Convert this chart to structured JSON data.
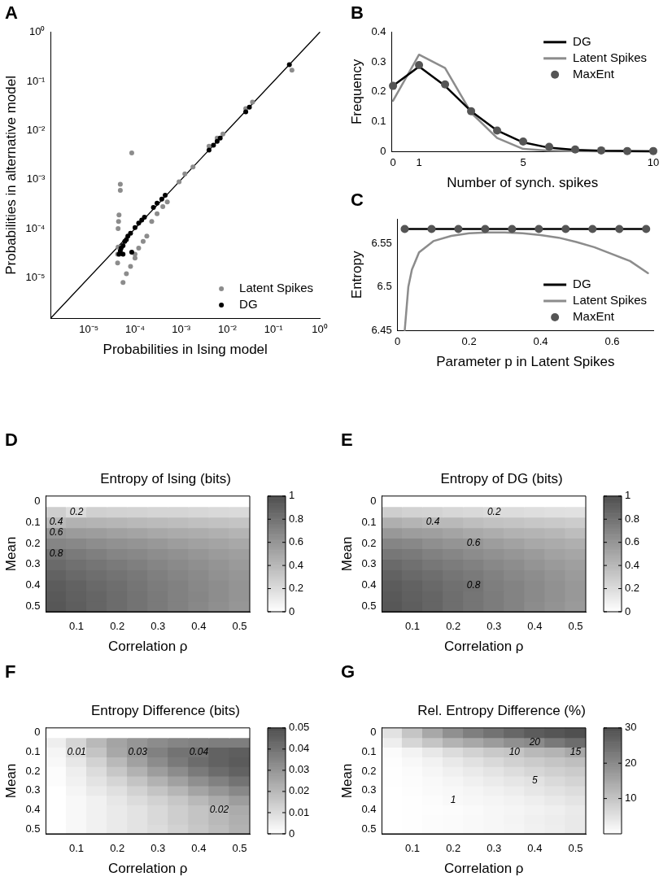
{
  "chart_data": [
    {
      "type": "scatter",
      "annotations": [
        "A"
      ],
      "xlabel": "Probabilities in Ising model",
      "ylabel": "Probabilities in alternative model",
      "log": "xy",
      "legend": "bottom right",
      "xlim": [
        1.5e-06,
        1
      ],
      "ylim": [
        1.5e-06,
        1
      ],
      "xticks": [
        {
          "value": 1e-05,
          "label": "10⁻⁵"
        },
        {
          "value": 0.0001,
          "label": "10⁻⁴"
        },
        {
          "value": 0.001,
          "label": "10⁻³"
        },
        {
          "value": 0.01,
          "label": "10⁻²"
        },
        {
          "value": 0.1,
          "label": "10⁻¹"
        },
        {
          "value": 1,
          "label": "10⁰"
        }
      ],
      "yticks": [
        {
          "value": 1e-05,
          "label": "10⁻⁵"
        },
        {
          "value": 0.0001,
          "label": "10⁻⁴"
        },
        {
          "value": 0.001,
          "label": "10⁻³"
        },
        {
          "value": 0.01,
          "label": "10⁻²"
        },
        {
          "value": 0.1,
          "label": "10⁻¹"
        },
        {
          "value": 1,
          "label": "10⁰"
        }
      ],
      "series": [
        {
          "type": "line",
          "marker": "none",
          "color": "#000000",
          "x": [
            1.5e-06,
            1
          ],
          "values": [
            1.5e-06,
            1
          ]
        },
        {
          "name": "Latent Spikes",
          "marker": "circle",
          "color": "#8c8c8c",
          "x": [
            4.2e-05,
            4.2e-05,
            4.3e-05,
            4.3e-05,
            4.4e-05,
            4.5e-05,
            4.8e-05,
            4.8e-05,
            8.5e-05,
            5.5e-05,
            6.5e-05,
            8e-05,
            0.0001,
            0.0001,
            0.00012,
            0.00015,
            0.00018,
            0.00023,
            0.0003,
            0.0004,
            0.0005,
            0.0009,
            0.0012,
            0.0018,
            0.004,
            0.006,
            0.008,
            0.025,
            0.035,
            0.25
          ],
          "values": [
            2e-05,
            3e-05,
            4.2e-05,
            0.0001,
            0.00014,
            0.00019,
            0.0006,
            0.0008,
            0.0035,
            8e-06,
            1.2e-05,
            1.7e-05,
            2.5e-05,
            3e-05,
            4e-05,
            5.5e-05,
            7e-05,
            0.00014,
            0.0002,
            0.00028,
            0.00035,
            0.0009,
            0.0013,
            0.0018,
            0.0048,
            0.007,
            0.0085,
            0.028,
            0.038,
            0.17
          ]
        },
        {
          "name": "DG",
          "marker": "circle",
          "color": "#000000",
          "x": [
            4.5e-05,
            4.8e-05,
            5e-05,
            5.5e-05,
            5.5e-05,
            6e-05,
            6.5e-05,
            7e-05,
            8e-05,
            8.5e-05,
            0.0001,
            0.00012,
            0.00014,
            0.00016,
            0.00025,
            0.0003,
            0.00038,
            0.00045,
            0.004,
            0.005,
            0.006,
            0.007,
            0.025,
            0.03,
            0.22
          ],
          "values": [
            3e-05,
            3.5e-05,
            4e-05,
            4.5e-05,
            3e-05,
            5.5e-05,
            6e-05,
            7e-05,
            8e-05,
            3.3e-05,
            0.000105,
            0.00013,
            0.00015,
            0.00017,
            0.00027,
            0.00033,
            0.0004,
            0.00048,
            0.004,
            0.005,
            0.006,
            0.007,
            0.024,
            0.03,
            0.22
          ]
        }
      ]
    },
    {
      "type": "line",
      "annotations": [
        "B"
      ],
      "xlabel": "Number of synch. spikes",
      "ylabel": "Frequency",
      "legend": "top right",
      "marker": "circle",
      "xlim": [
        -0.05,
        10
      ],
      "xticks": [
        0,
        1,
        5,
        10
      ],
      "ylim": [
        0,
        0.4
      ],
      "yticks": [
        0,
        0.1,
        0.2,
        0.3,
        0.4
      ],
      "x": [
        0,
        1,
        2,
        3,
        4,
        5,
        6,
        7,
        8,
        9,
        10
      ],
      "series": [
        {
          "name": "DG",
          "marker": "none",
          "color": "#000000",
          "values": [
            0.22,
            0.285,
            0.22,
            0.135,
            0.07,
            0.03,
            0.012,
            0.005,
            0.002,
            0.001,
            0
          ]
        },
        {
          "name": "Latent Spikes",
          "marker": "none",
          "color": "#8c8c8c",
          "values": [
            0.17,
            0.325,
            0.28,
            0.13,
            0.045,
            0.008,
            0.002,
            0.001,
            0,
            0,
            0
          ]
        },
        {
          "name": "MaxEnt",
          "type": "scatter",
          "color": "#555555",
          "values": [
            0.22,
            0.29,
            0.225,
            0.135,
            0.07,
            0.033,
            0.015,
            0.006,
            0.003,
            0.001,
            0.001
          ]
        }
      ]
    },
    {
      "type": "line",
      "annotations": [
        "C"
      ],
      "xlabel": "Parameter p in Latent Spikes",
      "ylabel": "Entropy",
      "legend": "bottom right",
      "marker": "circle",
      "xlim": [
        0,
        0.715
      ],
      "xticks": [
        0,
        0.2,
        0.4,
        0.6
      ],
      "ylim": [
        6.45,
        6.578
      ],
      "yticks": [
        6.45,
        6.5,
        6.55
      ],
      "series": [
        {
          "name": "DG",
          "marker": "none",
          "color": "#000000",
          "x": [
            0.02,
            0.695
          ],
          "values": [
            6.567,
            6.567
          ]
        },
        {
          "name": "Latent Spikes",
          "marker": "none",
          "color": "#8c8c8c",
          "x": [
            0.02,
            0.03,
            0.04,
            0.06,
            0.1,
            0.15,
            0.2,
            0.25,
            0.3,
            0.35,
            0.4,
            0.45,
            0.5,
            0.55,
            0.6,
            0.65,
            0.7
          ],
          "values": [
            6.45,
            6.5,
            6.52,
            6.54,
            6.553,
            6.559,
            6.562,
            6.563,
            6.563,
            6.562,
            6.56,
            6.557,
            6.552,
            6.546,
            6.538,
            6.53,
            6.516
          ]
        },
        {
          "name": "MaxEnt",
          "type": "scatter",
          "color": "#555555",
          "x": [
            0.02,
            0.095,
            0.17,
            0.245,
            0.32,
            0.395,
            0.47,
            0.545,
            0.62,
            0.695
          ],
          "values": [
            6.567,
            6.567,
            6.567,
            6.567,
            6.567,
            6.567,
            6.567,
            6.567,
            6.567,
            6.567
          ]
        }
      ]
    },
    {
      "type": "heatmap",
      "annotations": [
        "D"
      ],
      "title": "Entropy of Ising (bits)",
      "xlabel": "Correlation ρ",
      "ylabel": "Mean",
      "categories": [
        null,
        "0.1",
        null,
        "0.2",
        null,
        "0.3",
        null,
        "0.4",
        null,
        "0.5"
      ],
      "y_categories": [
        "0",
        null,
        "0.1",
        null,
        "0.2",
        null,
        "0.3",
        null,
        "0.4",
        null,
        "0.5"
      ],
      "clim": [
        0,
        1
      ],
      "cticks": [
        0,
        0.2,
        0.4,
        0.6,
        0.8,
        1
      ],
      "cells": [
        [
          0,
          0,
          0,
          0,
          0,
          0,
          0,
          0,
          0,
          0
        ],
        [
          0.28,
          0.2,
          0.27,
          0.26,
          0.25,
          0.24,
          0.24,
          0.23,
          0.22,
          0.21
        ],
        [
          0.4,
          0.44,
          0.43,
          0.42,
          0.4,
          0.39,
          0.38,
          0.36,
          0.35,
          0.34
        ],
        [
          0.6,
          0.57,
          0.56,
          0.54,
          0.52,
          0.5,
          0.48,
          0.47,
          0.45,
          0.43
        ],
        [
          0.7,
          0.68,
          0.65,
          0.63,
          0.61,
          0.59,
          0.56,
          0.54,
          0.52,
          0.5
        ],
        [
          0.8,
          0.76,
          0.73,
          0.7,
          0.68,
          0.65,
          0.63,
          0.6,
          0.57,
          0.55
        ],
        [
          0.85,
          0.82,
          0.79,
          0.76,
          0.73,
          0.7,
          0.67,
          0.64,
          0.61,
          0.58
        ],
        [
          0.9,
          0.86,
          0.83,
          0.8,
          0.77,
          0.73,
          0.7,
          0.67,
          0.63,
          0.6
        ],
        [
          0.93,
          0.9,
          0.86,
          0.83,
          0.79,
          0.75,
          0.72,
          0.68,
          0.65,
          0.61
        ],
        [
          0.95,
          0.91,
          0.88,
          0.84,
          0.8,
          0.76,
          0.72,
          0.69,
          0.65,
          0.61
        ],
        [
          0.96,
          0.92,
          0.88,
          0.84,
          0.8,
          0.76,
          0.72,
          0.68,
          0.64,
          0.6
        ]
      ],
      "cell_labels": [
        [
          null,
          null,
          null,
          null,
          null,
          null,
          null,
          null,
          null,
          null
        ],
        [
          null,
          "0.2",
          null,
          null,
          null,
          null,
          null,
          null,
          null,
          null
        ],
        [
          "0.4",
          null,
          null,
          null,
          null,
          null,
          null,
          null,
          null,
          null
        ],
        [
          "0.6",
          null,
          null,
          null,
          null,
          null,
          null,
          null,
          null,
          null
        ],
        [
          null,
          null,
          null,
          null,
          null,
          null,
          null,
          null,
          null,
          null
        ],
        [
          "0.8",
          null,
          null,
          null,
          null,
          null,
          null,
          null,
          null,
          null
        ],
        [
          null,
          null,
          null,
          null,
          null,
          null,
          null,
          null,
          null,
          null
        ],
        [
          null,
          null,
          null,
          null,
          null,
          null,
          null,
          null,
          null,
          null
        ],
        [
          null,
          null,
          null,
          null,
          null,
          null,
          null,
          null,
          null,
          null
        ],
        [
          null,
          null,
          null,
          null,
          null,
          null,
          null,
          null,
          null,
          null
        ],
        [
          null,
          null,
          null,
          null,
          null,
          null,
          null,
          null,
          null,
          null
        ]
      ]
    },
    {
      "type": "heatmap",
      "annotations": [
        "E"
      ],
      "title": "Entropy of DG (bits)",
      "xlabel": "Correlation ρ",
      "ylabel": "Mean",
      "categories": [
        null,
        "0.1",
        null,
        "0.2",
        null,
        "0.3",
        null,
        "0.4",
        null,
        "0.5"
      ],
      "y_categories": [
        "0",
        null,
        "0.1",
        null,
        "0.2",
        null,
        "0.3",
        null,
        "0.4",
        null,
        "0.5"
      ],
      "clim": [
        0,
        1
      ],
      "cticks": [
        0,
        0.2,
        0.4,
        0.6,
        0.8,
        1
      ],
      "cells": [
        [
          0,
          0,
          0,
          0,
          0,
          0,
          0,
          0,
          0,
          0
        ],
        [
          0.28,
          0.26,
          0.25,
          0.23,
          0.22,
          0.2,
          0.2,
          0.19,
          0.18,
          0.17
        ],
        [
          0.46,
          0.43,
          0.4,
          0.4,
          0.37,
          0.35,
          0.34,
          0.32,
          0.31,
          0.29
        ],
        [
          0.59,
          0.56,
          0.55,
          0.52,
          0.49,
          0.47,
          0.44,
          0.43,
          0.41,
          0.38
        ],
        [
          0.7,
          0.68,
          0.64,
          0.61,
          0.6,
          0.56,
          0.53,
          0.5,
          0.48,
          0.46
        ],
        [
          0.78,
          0.76,
          0.72,
          0.69,
          0.66,
          0.63,
          0.6,
          0.57,
          0.53,
          0.51
        ],
        [
          0.85,
          0.82,
          0.78,
          0.75,
          0.72,
          0.68,
          0.65,
          0.61,
          0.58,
          0.55
        ],
        [
          0.9,
          0.86,
          0.83,
          0.79,
          0.76,
          0.72,
          0.68,
          0.65,
          0.61,
          0.57
        ],
        [
          0.93,
          0.9,
          0.86,
          0.82,
          0.8,
          0.74,
          0.71,
          0.67,
          0.63,
          0.59
        ],
        [
          0.95,
          0.91,
          0.88,
          0.83,
          0.79,
          0.75,
          0.71,
          0.67,
          0.63,
          0.59
        ],
        [
          0.96,
          0.92,
          0.88,
          0.83,
          0.79,
          0.75,
          0.71,
          0.66,
          0.62,
          0.58
        ]
      ],
      "cell_labels": [
        [
          null,
          null,
          null,
          null,
          null,
          null,
          null,
          null,
          null,
          null
        ],
        [
          null,
          null,
          null,
          null,
          null,
          "0.2",
          null,
          null,
          null,
          null
        ],
        [
          null,
          null,
          "0.4",
          null,
          null,
          null,
          null,
          null,
          null,
          null
        ],
        [
          null,
          null,
          null,
          null,
          null,
          null,
          null,
          null,
          null,
          null
        ],
        [
          null,
          null,
          null,
          null,
          "0.6",
          null,
          null,
          null,
          null,
          null
        ],
        [
          null,
          null,
          null,
          null,
          null,
          null,
          null,
          null,
          null,
          null
        ],
        [
          null,
          null,
          null,
          null,
          null,
          null,
          null,
          null,
          null,
          null
        ],
        [
          null,
          null,
          null,
          null,
          null,
          null,
          null,
          null,
          null,
          null
        ],
        [
          null,
          null,
          null,
          null,
          "0.8",
          null,
          null,
          null,
          null,
          null
        ],
        [
          null,
          null,
          null,
          null,
          null,
          null,
          null,
          null,
          null,
          null
        ],
        [
          null,
          null,
          null,
          null,
          null,
          null,
          null,
          null,
          null,
          null
        ]
      ]
    },
    {
      "type": "heatmap",
      "annotations": [
        "F"
      ],
      "title": "Entropy Difference (bits)",
      "xlabel": "Correlation ρ",
      "ylabel": "Mean",
      "categories": [
        null,
        "0.1",
        null,
        "0.2",
        null,
        "0.3",
        null,
        "0.4",
        null,
        "0.5"
      ],
      "y_categories": [
        "0",
        null,
        "0.1",
        null,
        "0.2",
        null,
        "0.3",
        null,
        "0.4",
        null,
        "0.5"
      ],
      "clim": [
        0,
        0.05
      ],
      "cticks": [
        0,
        0.01,
        0.02,
        0.03,
        0.04,
        0.05
      ],
      "cells": [
        [
          0,
          0,
          0,
          0,
          0,
          0,
          0,
          0,
          0,
          0
        ],
        [
          0.005,
          0.012,
          0.02,
          0.026,
          0.03,
          0.033,
          0.035,
          0.036,
          0.037,
          0.037
        ],
        [
          0.003,
          0.01,
          0.017,
          0.025,
          0.03,
          0.036,
          0.04,
          0.04,
          0.045,
          0.046
        ],
        [
          0.002,
          0.007,
          0.013,
          0.02,
          0.027,
          0.033,
          0.038,
          0.042,
          0.045,
          0.047
        ],
        [
          0.001,
          0.005,
          0.01,
          0.016,
          0.022,
          0.028,
          0.033,
          0.038,
          0.042,
          0.045
        ],
        [
          0.001,
          0.004,
          0.008,
          0.012,
          0.017,
          0.022,
          0.027,
          0.032,
          0.036,
          0.04
        ],
        [
          0,
          0.003,
          0.006,
          0.009,
          0.013,
          0.017,
          0.021,
          0.026,
          0.03,
          0.034
        ],
        [
          0,
          0.002,
          0.004,
          0.007,
          0.01,
          0.013,
          0.016,
          0.02,
          0.024,
          0.028
        ],
        [
          0,
          0.002,
          0.004,
          0.006,
          0.008,
          0.011,
          0.014,
          0.017,
          0.02,
          0.024
        ],
        [
          0,
          0.002,
          0.004,
          0.006,
          0.008,
          0.011,
          0.014,
          0.017,
          0.02,
          0.023
        ],
        [
          0,
          0.002,
          0.004,
          0.006,
          0.008,
          0.01,
          0.013,
          0.016,
          0.019,
          0.022
        ]
      ],
      "cell_labels": [
        [
          null,
          null,
          null,
          null,
          null,
          null,
          null,
          null,
          null,
          null
        ],
        [
          null,
          null,
          null,
          null,
          null,
          null,
          null,
          null,
          null,
          null
        ],
        [
          null,
          "0.01",
          null,
          null,
          "0.03",
          null,
          null,
          "0.04",
          null,
          null
        ],
        [
          null,
          null,
          null,
          null,
          null,
          null,
          null,
          null,
          null,
          null
        ],
        [
          null,
          null,
          null,
          null,
          null,
          null,
          null,
          null,
          null,
          null
        ],
        [
          null,
          null,
          null,
          null,
          null,
          null,
          null,
          null,
          null,
          null
        ],
        [
          null,
          null,
          null,
          null,
          null,
          null,
          null,
          null,
          null,
          null
        ],
        [
          null,
          null,
          null,
          null,
          null,
          null,
          null,
          null,
          null,
          null
        ],
        [
          null,
          null,
          null,
          null,
          null,
          null,
          null,
          null,
          "0.02",
          null
        ],
        [
          null,
          null,
          null,
          null,
          null,
          null,
          null,
          null,
          null,
          null
        ],
        [
          null,
          null,
          null,
          null,
          null,
          null,
          null,
          null,
          null,
          null
        ]
      ]
    },
    {
      "type": "heatmap",
      "annotations": [
        "G"
      ],
      "title": "Rel. Entropy Difference (%)",
      "xlabel": "Correlation ρ",
      "ylabel": "Mean",
      "categories": [
        null,
        "0.1",
        null,
        "0.2",
        null,
        "0.3",
        null,
        "0.4",
        null,
        "0.5"
      ],
      "y_categories": [
        "0",
        null,
        "0.1",
        null,
        "0.2",
        null,
        "0.3",
        null,
        "0.4",
        null,
        "0.5"
      ],
      "clim": [
        0,
        30
      ],
      "cticks": [
        10,
        20,
        30
      ],
      "cells": [
        [
          5,
          10,
          15,
          19,
          22,
          24,
          26,
          28,
          29,
          30
        ],
        [
          3,
          7,
          10,
          13,
          15,
          17,
          19,
          20,
          23,
          25
        ],
        [
          0.7,
          2,
          4,
          6,
          7.8,
          9.2,
          10,
          12,
          12.9,
          15
        ],
        [
          0.3,
          1.2,
          2.3,
          3.7,
          5.2,
          6.6,
          7.9,
          8.9,
          10,
          10.9
        ],
        [
          0.1,
          0.7,
          1.5,
          2.5,
          3.6,
          4.7,
          5.9,
          7,
          8.1,
          9
        ],
        [
          0.1,
          0.5,
          1.1,
          1.7,
          2.5,
          3.4,
          4.3,
          5,
          6.3,
          7.3
        ],
        [
          0,
          0.4,
          0.8,
          1.2,
          1.8,
          2.4,
          3.1,
          4.1,
          4.9,
          5.9
        ],
        [
          0,
          0.2,
          0.5,
          1,
          1.3,
          1.8,
          2.3,
          3,
          3.8,
          4.7
        ],
        [
          0,
          0.1,
          0.3,
          0.6,
          0.9,
          1.3,
          1.7,
          2.2,
          2.8,
          3.6
        ],
        [
          0,
          0.2,
          0.5,
          0.7,
          1,
          1.4,
          1.9,
          2.5,
          3.1,
          3.8
        ],
        [
          0,
          0.2,
          0.5,
          0.7,
          1,
          1.3,
          1.8,
          2.4,
          3,
          3.7
        ]
      ],
      "cell_labels": [
        [
          null,
          null,
          null,
          null,
          null,
          null,
          null,
          null,
          null,
          null
        ],
        [
          null,
          null,
          null,
          null,
          null,
          null,
          null,
          "20",
          null,
          null
        ],
        [
          null,
          null,
          null,
          null,
          null,
          null,
          "10",
          null,
          null,
          "15"
        ],
        [
          null,
          null,
          null,
          null,
          null,
          null,
          null,
          null,
          null,
          null
        ],
        [
          null,
          null,
          null,
          null,
          null,
          null,
          null,
          null,
          null,
          null
        ],
        [
          null,
          null,
          null,
          null,
          null,
          null,
          null,
          "5",
          null,
          null
        ],
        [
          null,
          null,
          null,
          null,
          null,
          null,
          null,
          null,
          null,
          null
        ],
        [
          null,
          null,
          null,
          "1",
          null,
          null,
          null,
          null,
          null,
          null
        ],
        [
          null,
          null,
          null,
          null,
          null,
          null,
          null,
          null,
          null,
          null
        ],
        [
          null,
          null,
          null,
          null,
          null,
          null,
          null,
          null,
          null,
          null
        ],
        [
          null,
          null,
          null,
          null,
          null,
          null,
          null,
          null,
          null,
          null
        ]
      ]
    }
  ]
}
